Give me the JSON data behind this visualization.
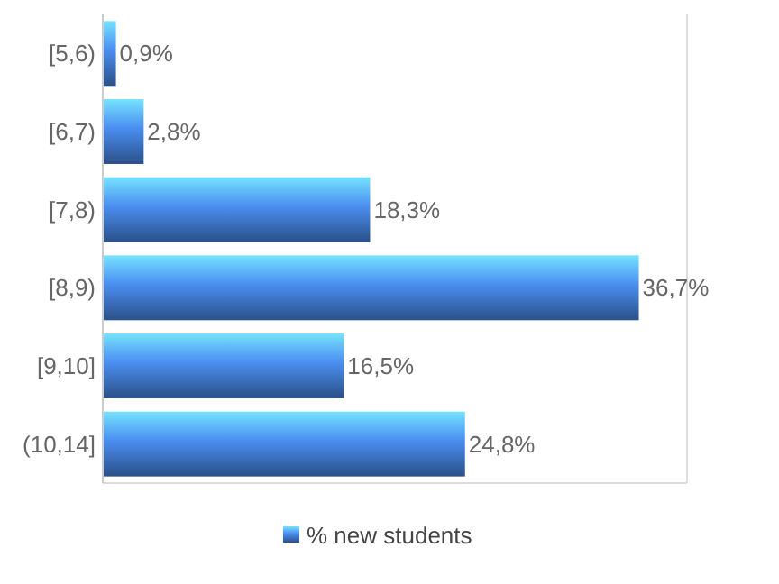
{
  "chart_data": {
    "type": "bar",
    "orientation": "horizontal",
    "categories": [
      "[5,6)",
      "[6,7)",
      "[7,8)",
      "[8,9)",
      "[9,10]",
      "(10,14]"
    ],
    "series": [
      {
        "name": "% new students",
        "color": "#4a8ef0",
        "values": [
          0.9,
          2.8,
          18.3,
          36.7,
          16.5,
          24.8
        ],
        "value_labels": [
          "0,9%",
          "2,8%",
          "18,3%",
          "36,7%",
          "16,5%",
          "24,8%"
        ]
      }
    ],
    "xlim": [
      0,
      40
    ],
    "tick_labels": "y",
    "legend": "bottom"
  }
}
